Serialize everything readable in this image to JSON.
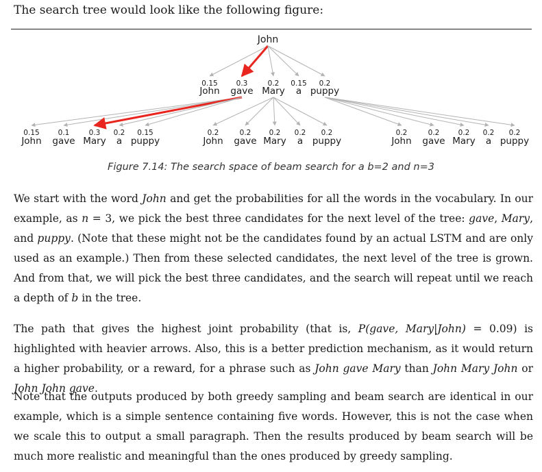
{
  "intro": "The search tree would look like the following figure:",
  "figure": {
    "root": "John",
    "level1": {
      "probs": [
        "0.15",
        "0.3",
        "0.2",
        "0.15",
        "0.2"
      ],
      "words": [
        "John",
        "gave",
        "Mary",
        "a",
        "puppy"
      ]
    },
    "level2": [
      {
        "probs": [
          "0.15",
          "0.1",
          "0.3",
          "0.2",
          "0.15"
        ],
        "words": [
          "John",
          "gave",
          "Mary",
          "a",
          "puppy"
        ]
      },
      {
        "probs": [
          "0.2",
          "0.2",
          "0.2",
          "0.2",
          "0.2"
        ],
        "words": [
          "John",
          "gave",
          "Mary",
          "a",
          "puppy"
        ]
      },
      {
        "probs": [
          "0.2",
          "0.2",
          "0.2",
          "0.2",
          "0.2"
        ],
        "words": [
          "John",
          "gave",
          "Mary",
          "a",
          "puppy"
        ]
      }
    ],
    "highlight_color": "#e8261f",
    "arrow_color": "#b3b3b3"
  },
  "caption": "Figure 7.14: The search space of beam search for a b=2 and n=3",
  "p1": {
    "t1": "We start with the word ",
    "i1": "John",
    "t2": " and get the probabilities for all the words in the vocabulary. In our example, as ",
    "i2": "n",
    "t3": " = 3, we pick the best three candidates for the next level of the tree: ",
    "i3": "gave",
    "t4": ", ",
    "i4": "Mary",
    "t5": ", and ",
    "i5": "puppy",
    "t6": ". (Note that these might not be the candidates found by an actual LSTM and are only used as an example.) Then from these selected candidates, the next level of the tree is grown. And from that, we will pick the best three candidates, and the search will repeat until we reach a depth of ",
    "i6": "b",
    "t7": " in the tree."
  },
  "p2": {
    "t1": "The path that gives the highest joint probability (that is, ",
    "math": "P(gave, Mary|John)",
    "eq": " = 0.09",
    "t2": ") is highlighted with heavier arrows. Also, this is a better prediction mechanism, as it would return a higher probability, or a reward, for a phrase such as ",
    "i1": "John gave Mary",
    "t3": " than ",
    "i2": "John Mary John",
    "t4": " or ",
    "i3": "John John gave",
    "t5": "."
  },
  "p3": "Note that the outputs produced by both greedy sampling and beam search are identical in our example, which is a simple sentence containing five words. However, this is not the case when we scale this to output a small paragraph. Then the results produced by beam search will be much more realistic and meaningful than the ones produced by greedy sampling."
}
